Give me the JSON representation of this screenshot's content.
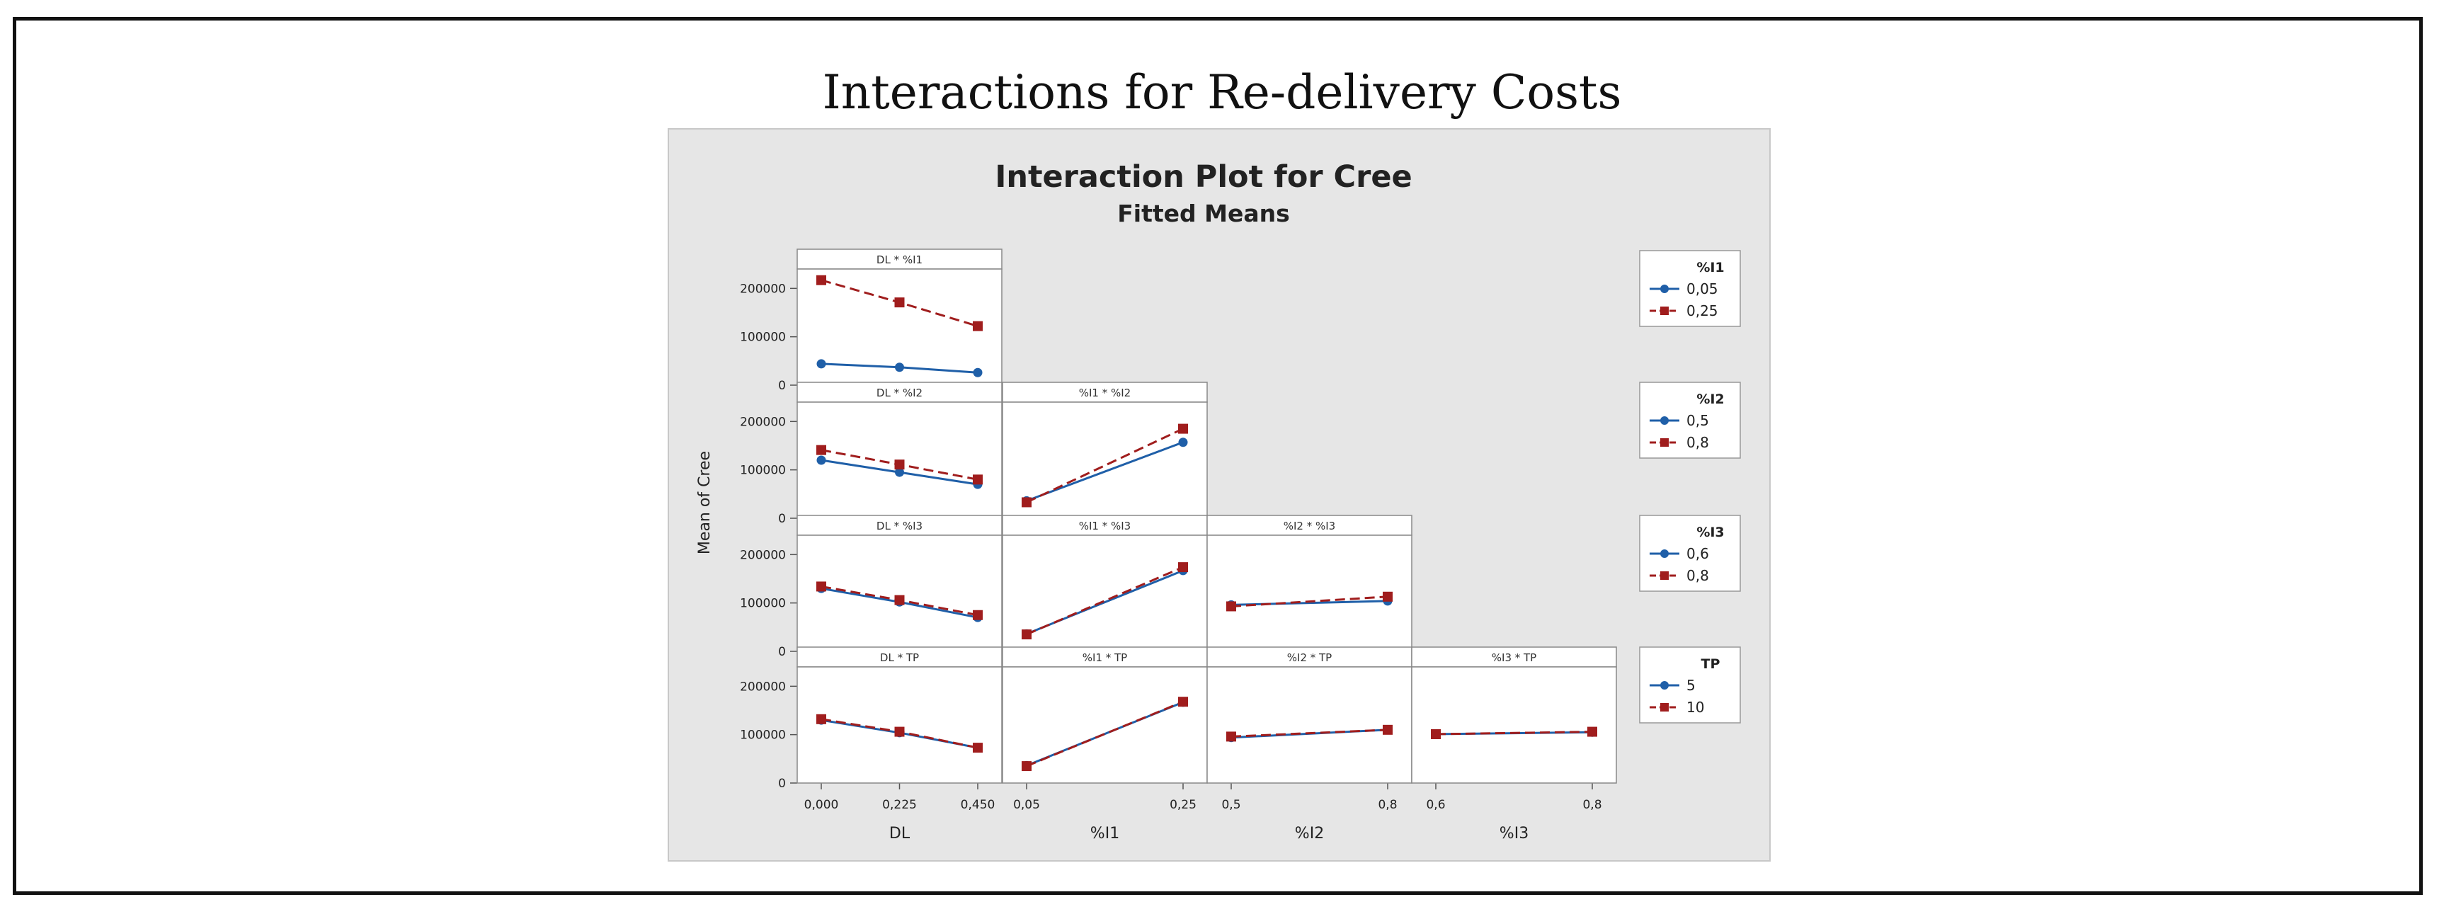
{
  "page_title": "Interactions for Re-delivery Costs",
  "colors": {
    "series1": "#1f5fa8",
    "series2": "#a01d1d",
    "background": "#e6e6e6",
    "panel": "#ffffff"
  },
  "chart_data": {
    "type": "line",
    "title": "Interaction Plot for Cree",
    "subtitle": "Fitted Means",
    "ylabel": "Mean of Cree",
    "ylim": [
      0,
      240000
    ],
    "yticks": [
      0,
      100000,
      200000
    ],
    "ytick_labels": [
      "0",
      "100000",
      "200000"
    ],
    "factors": [
      {
        "name": "DL",
        "xlabel": "DL",
        "ticks": [
          "0,000",
          "0,225",
          "0,450"
        ]
      },
      {
        "name": "%I1",
        "xlabel": "%I1",
        "ticks": [
          "0,05",
          "0,25"
        ]
      },
      {
        "name": "%I2",
        "xlabel": "%I2",
        "ticks": [
          "0,5",
          "0,8"
        ]
      },
      {
        "name": "%I3",
        "xlabel": "%I3",
        "ticks": [
          "0,6",
          "0,8"
        ]
      }
    ],
    "legends": [
      {
        "title": "%I1",
        "entries": [
          "0,05",
          "0,25"
        ]
      },
      {
        "title": "%I2",
        "entries": [
          "0,5",
          "0,8"
        ]
      },
      {
        "title": "%I3",
        "entries": [
          "0,6",
          "0,8"
        ]
      },
      {
        "title": "TP",
        "entries": [
          "5",
          "10"
        ]
      }
    ],
    "panels": [
      {
        "row": 0,
        "col": 0,
        "label": "DL * %I1",
        "series": [
          {
            "name": "0,05",
            "values": [
              44000,
              37000,
              26000
            ]
          },
          {
            "name": "0,25",
            "values": [
              217000,
              171000,
              122000
            ]
          }
        ]
      },
      {
        "row": 1,
        "col": 0,
        "label": "DL * %I2",
        "series": [
          {
            "name": "0,5",
            "values": [
              120000,
              95000,
              70000
            ]
          },
          {
            "name": "0,8",
            "values": [
              141000,
              111000,
              80000
            ]
          }
        ]
      },
      {
        "row": 1,
        "col": 1,
        "label": "%I1 * %I2",
        "series": [
          {
            "name": "0,5",
            "values": [
              36000,
              157000
            ]
          },
          {
            "name": "0,8",
            "values": [
              33000,
              185000
            ]
          }
        ]
      },
      {
        "row": 2,
        "col": 0,
        "label": "DL * %I3",
        "series": [
          {
            "name": "0,6",
            "values": [
              130000,
              102000,
              70000
            ]
          },
          {
            "name": "0,8",
            "values": [
              134000,
              106000,
              75000
            ]
          }
        ]
      },
      {
        "row": 2,
        "col": 1,
        "label": "%I1 * %I3",
        "series": [
          {
            "name": "0,6",
            "values": [
              36000,
              167000
            ]
          },
          {
            "name": "0,8",
            "values": [
              35000,
              174000
            ]
          }
        ]
      },
      {
        "row": 2,
        "col": 2,
        "label": "%I2 * %I3",
        "series": [
          {
            "name": "0,6",
            "values": [
              96000,
              104000
            ]
          },
          {
            "name": "0,8",
            "values": [
              93000,
              113000
            ]
          }
        ]
      },
      {
        "row": 3,
        "col": 0,
        "label": "DL * TP",
        "series": [
          {
            "name": "5",
            "values": [
              130000,
              104000,
              73000
            ]
          },
          {
            "name": "10",
            "values": [
              132000,
              106000,
              73000
            ]
          }
        ]
      },
      {
        "row": 3,
        "col": 1,
        "label": "%I1 * TP",
        "series": [
          {
            "name": "5",
            "values": [
              36000,
              167000
            ]
          },
          {
            "name": "10",
            "values": [
              35000,
              168000
            ]
          }
        ]
      },
      {
        "row": 3,
        "col": 2,
        "label": "%I2 * TP",
        "series": [
          {
            "name": "5",
            "values": [
              94000,
              110000
            ]
          },
          {
            "name": "10",
            "values": [
              96000,
              110000
            ]
          }
        ]
      },
      {
        "row": 3,
        "col": 3,
        "label": "%I3 * TP",
        "series": [
          {
            "name": "5",
            "values": [
              101000,
              105000
            ]
          },
          {
            "name": "10",
            "values": [
              101000,
              106000
            ]
          }
        ]
      }
    ]
  }
}
